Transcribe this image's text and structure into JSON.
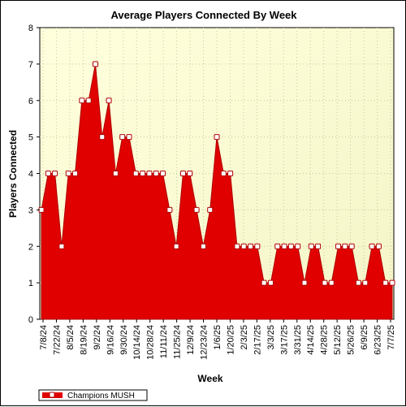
{
  "chart_data": {
    "type": "area",
    "title": "Average Players Connected By Week",
    "xlabel": "Week",
    "ylabel": "Players Connected",
    "ylim": [
      0,
      8
    ],
    "yticks": [
      0,
      1,
      2,
      3,
      4,
      5,
      6,
      7,
      8
    ],
    "x_tick_labels": [
      "7/8/24",
      "7/22/24",
      "8/5/24",
      "8/19/24",
      "9/2/24",
      "9/16/24",
      "9/30/24",
      "10/14/24",
      "10/28/24",
      "11/11/24",
      "11/25/24",
      "12/9/24",
      "12/23/24",
      "1/6/25",
      "1/20/25",
      "2/3/25",
      "2/17/25",
      "3/3/25",
      "3/17/25",
      "3/31/25",
      "4/14/25",
      "4/28/25",
      "5/12/25",
      "5/26/25",
      "6/9/25",
      "6/23/25",
      "7/7/25"
    ],
    "grid": true,
    "legend_position": "bottom-left",
    "background_gradient": [
      "#ffffdd",
      "#f5f5c8"
    ],
    "fill_color": "#e00000",
    "line_color": "#b00000",
    "marker_color": "#ffffff",
    "series": [
      {
        "name": "Champions MUSH",
        "values": [
          3,
          4,
          4,
          2,
          4,
          4,
          6,
          6,
          7,
          5,
          6,
          4,
          5,
          5,
          4,
          4,
          4,
          4,
          4,
          3,
          2,
          4,
          4,
          3,
          2,
          3,
          5,
          4,
          4,
          2,
          2,
          2,
          2,
          1,
          1,
          2,
          2,
          2,
          2,
          1,
          2,
          2,
          1,
          1,
          2,
          2,
          2,
          1,
          1,
          2,
          2,
          1,
          1
        ]
      }
    ]
  }
}
